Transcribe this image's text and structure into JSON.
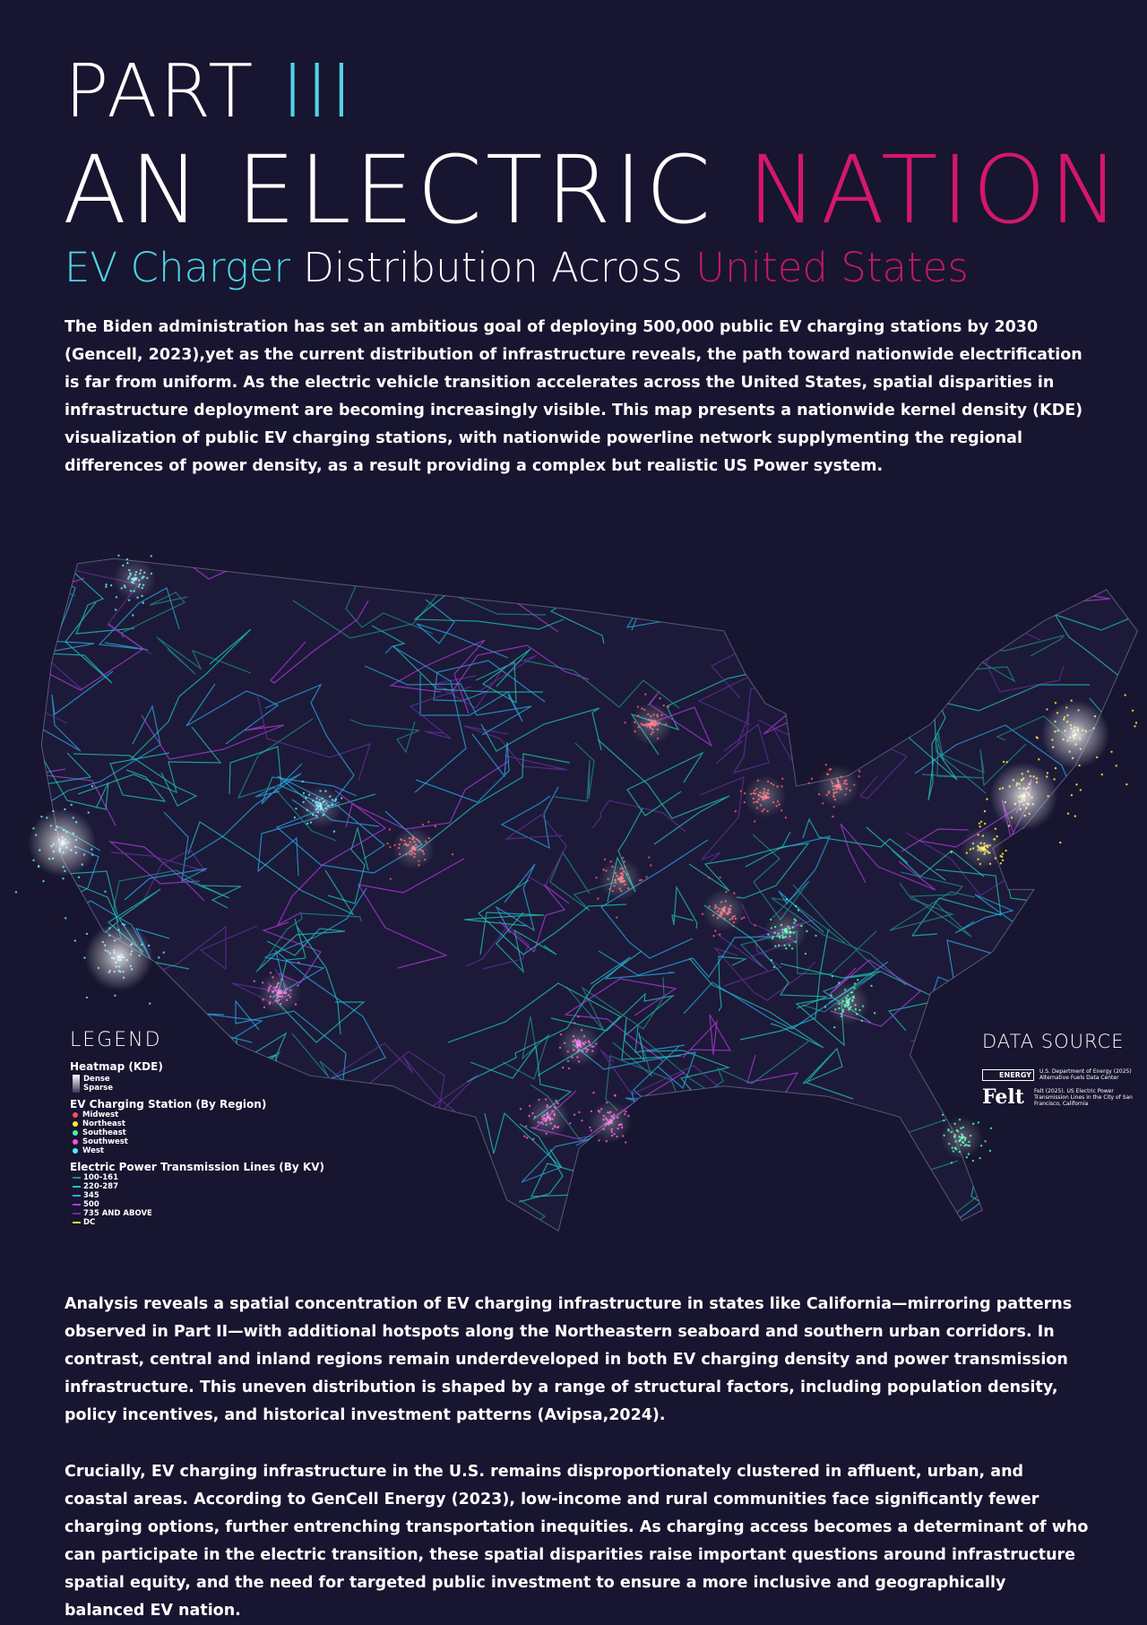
{
  "header": {
    "part": "PART",
    "part_numeral": "III",
    "title_main": "AN ELECTRIC",
    "title_accent": "NATION",
    "subtitle": [
      "EV Charger",
      "Distribution Across",
      "United States"
    ]
  },
  "intro": "The Biden administration has set an ambitious goal of deploying 500,000 public EV charging stations by 2030 (Gencell, 2023),yet as the current distribution of infrastructure reveals, the path toward nationwide electrification is far from uniform. As the electric vehicle transition accelerates across the United States, spatial disparities in infrastructure deployment are becoming increasingly visible. This map presents a nationwide kernel density (KDE) visualization of public EV charging stations, with nationwide powerline network supplymenting the regional differences of power density, as a result providing a complex but realistic US Power system.",
  "legend": {
    "title": "LEGEND",
    "heatmap": {
      "title": "Heatmap (KDE)",
      "items": [
        "Dense",
        "Sparse"
      ]
    },
    "stations": {
      "title": "EV Charging Station (By Region)",
      "items": [
        {
          "label": "Midwest",
          "color": "#ff4d5e"
        },
        {
          "label": "Northeast",
          "color": "#ffe83a"
        },
        {
          "label": "Southeast",
          "color": "#3dfca8"
        },
        {
          "label": "Southwest",
          "color": "#ff4fe0"
        },
        {
          "label": "West",
          "color": "#5ee6ff"
        }
      ]
    },
    "lines": {
      "title": "Electric Power Transmission Lines (By KV)",
      "items": [
        {
          "label": "100-161",
          "color": "#1f8f8a"
        },
        {
          "label": "220-287",
          "color": "#1fc7b8"
        },
        {
          "label": "345",
          "color": "#2aa9e8"
        },
        {
          "label": "500",
          "color": "#b43ae0"
        },
        {
          "label": "735 AND ABOVE",
          "color": "#6a2ea0"
        },
        {
          "label": "DC",
          "color": "#d8e63a"
        }
      ]
    }
  },
  "data_source": {
    "title": "DATA SOURCE",
    "sources": [
      {
        "logo": "ENERGY",
        "text": "U.S. Department of Energy (2025) Alternative Fuels Data Center"
      },
      {
        "logo": "Felt",
        "text": "Felt (2025). US Electric Power Transmission Lines in the City of San Francisco, California"
      }
    ]
  },
  "analysis": [
    "Analysis reveals a spatial concentration of EV charging infrastructure in states like California—mirroring patterns observed in Part II—with additional hotspots along the Northeastern seaboard and southern urban corridors. In contrast, central and inland regions remain underdeveloped in both EV charging density and power transmission infrastructure. This uneven distribution is shaped by a range of structural factors, including population density, policy incentives, and historical investment patterns (Avipsa,2024).",
    "Crucially, EV charging infrastructure in the U.S. remains disproportionately clustered in affluent, urban, and coastal areas. According to GenCell Energy (2023), low-income and rural communities face significantly fewer charging options, further entrenching transportation inequities. As charging access becomes a determinant of who can participate in the electric transition, these spatial disparities raise important questions around infrastructure spatial equity, and the need for targeted public investment to ensure a more inclusive and geographically balanced EV nation."
  ]
}
